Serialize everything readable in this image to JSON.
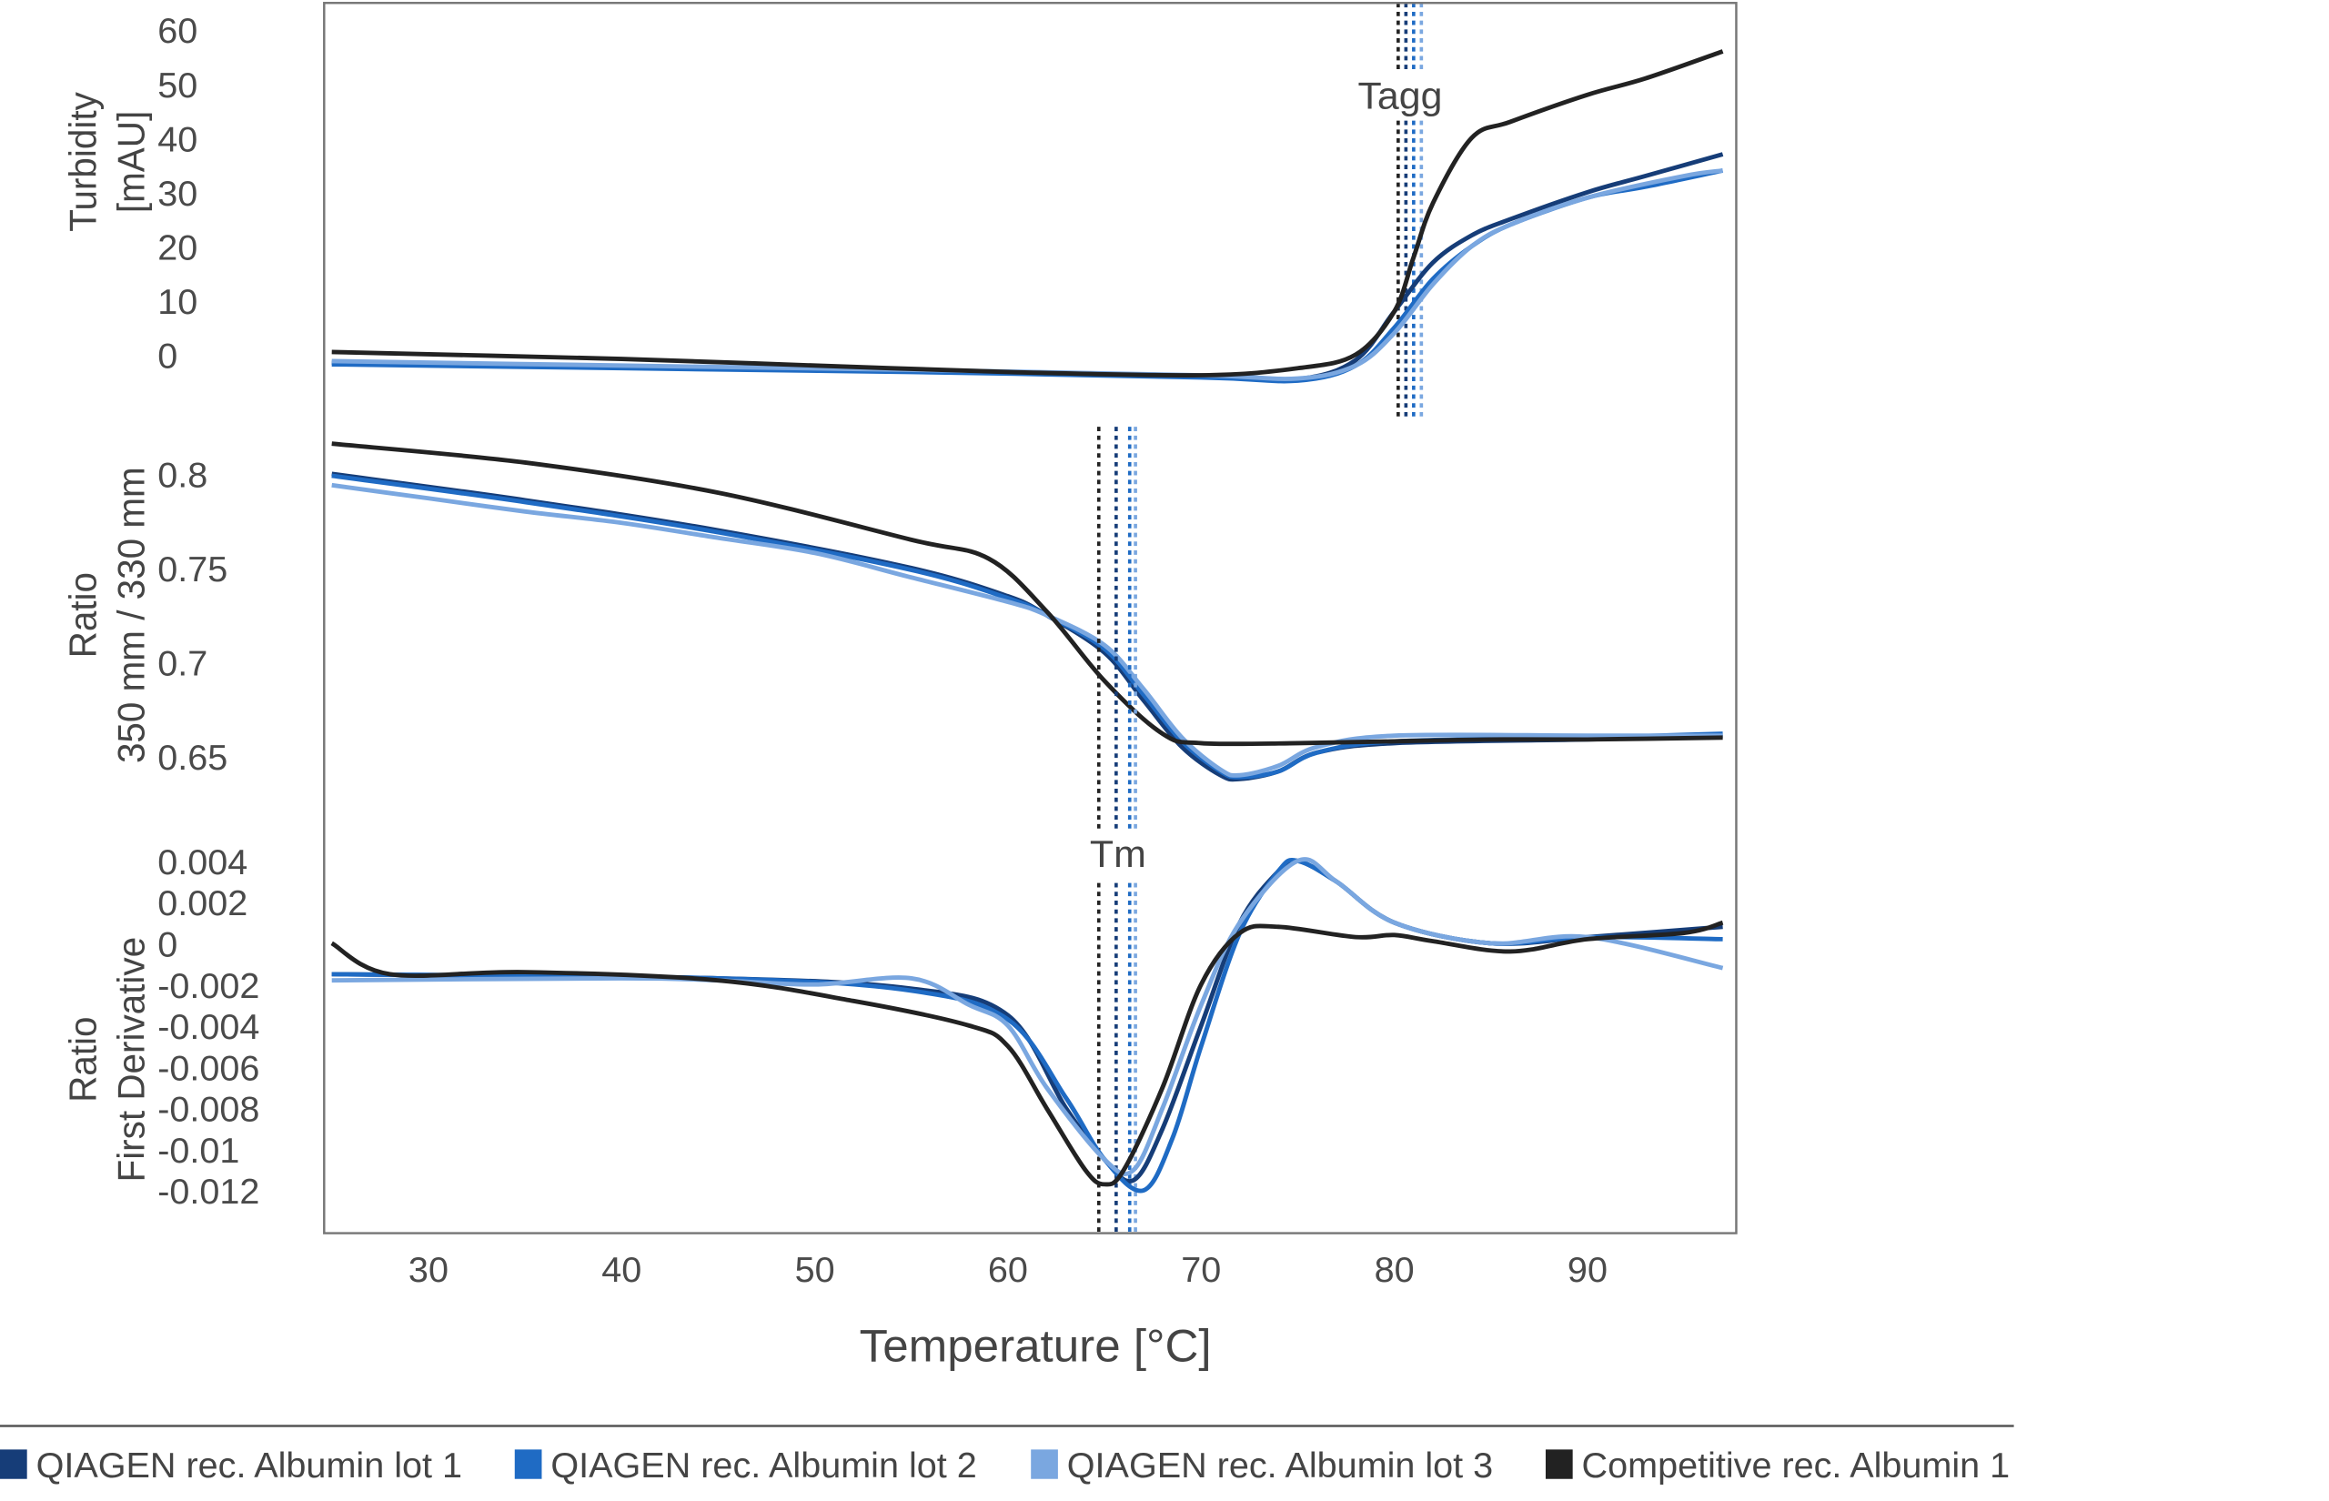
{
  "chart_data": [
    {
      "type": "line",
      "panel": "turbidity",
      "ylabel_lines": [
        "Turbidity",
        "[mAU]"
      ],
      "yticks": [
        "60",
        "50",
        "40",
        "30",
        "20",
        "10",
        "0"
      ],
      "ylim": [
        -6,
        60
      ],
      "annotation": "Tagg",
      "markers": [
        80.2,
        80.6,
        81.0,
        81.4
      ],
      "series": [
        {
          "name": "QIAGEN rec. Albumin lot 1",
          "x": [
            25,
            40,
            55,
            70,
            75,
            78,
            80,
            82,
            84,
            86,
            90,
            93,
            97
          ],
          "y": [
            -1.5,
            -2.2,
            -3,
            -4,
            -4.5,
            -1,
            8,
            17,
            22,
            25,
            30,
            33,
            37
          ]
        },
        {
          "name": "QIAGEN rec. Albumin lot 2",
          "x": [
            25,
            40,
            55,
            70,
            75,
            78,
            80,
            82,
            84,
            86,
            90,
            93,
            97
          ],
          "y": [
            -1.8,
            -2.5,
            -3.2,
            -4.2,
            -4.8,
            -2,
            5,
            14,
            20,
            24,
            29,
            31,
            34
          ]
        },
        {
          "name": "QIAGEN rec. Albumin lot 3",
          "x": [
            25,
            40,
            55,
            70,
            75,
            78,
            80,
            82,
            84,
            86,
            90,
            95,
            97
          ],
          "y": [
            -1.2,
            -2,
            -2.8,
            -3.8,
            -4.4,
            -2,
            4,
            13,
            20,
            24,
            29,
            33,
            34
          ]
        },
        {
          "name": "Competitive rec. Albumin 1",
          "x": [
            25,
            40,
            50,
            60,
            70,
            75,
            78,
            80,
            81,
            82,
            84,
            86,
            90,
            93,
            97
          ],
          "y": [
            0.5,
            -0.8,
            -2,
            -3.2,
            -3.8,
            -2.5,
            0,
            8,
            18,
            28,
            40,
            43,
            48,
            51,
            56
          ]
        }
      ]
    },
    {
      "type": "line",
      "panel": "ratio",
      "ylabel_lines": [
        "Ratio",
        "350 mm / 330 mm"
      ],
      "yticks": [
        "0.8",
        "0.75",
        "0.7",
        "0.65"
      ],
      "ylim": [
        0.63,
        0.82
      ],
      "markers": [],
      "series": [
        {
          "name": "QIAGEN rec. Albumin lot 1",
          "x": [
            25,
            35,
            45,
            55,
            60,
            62,
            65,
            67,
            69,
            71,
            72,
            74,
            76,
            80,
            90,
            97
          ],
          "y": [
            0.8,
            0.786,
            0.77,
            0.75,
            0.735,
            0.725,
            0.705,
            0.68,
            0.655,
            0.64,
            0.638,
            0.642,
            0.652,
            0.657,
            0.659,
            0.661
          ]
        },
        {
          "name": "QIAGEN rec. Albumin lot 2",
          "x": [
            25,
            35,
            45,
            55,
            60,
            62,
            65,
            67,
            69,
            71,
            72,
            74,
            76,
            80,
            90,
            97
          ],
          "y": [
            0.799,
            0.785,
            0.769,
            0.749,
            0.734,
            0.725,
            0.707,
            0.683,
            0.658,
            0.642,
            0.639,
            0.642,
            0.652,
            0.658,
            0.66,
            0.662
          ]
        },
        {
          "name": "QIAGEN rec. Albumin lot 3",
          "x": [
            25,
            30,
            35,
            40,
            45,
            50,
            55,
            60,
            62,
            65,
            67,
            69,
            71,
            72,
            74,
            76,
            80,
            90,
            97
          ],
          "y": [
            0.794,
            0.787,
            0.78,
            0.774,
            0.766,
            0.758,
            0.745,
            0.732,
            0.725,
            0.709,
            0.686,
            0.66,
            0.643,
            0.64,
            0.645,
            0.655,
            0.661,
            0.661,
            0.661
          ]
        },
        {
          "name": "Competitive rec. Albumin 1",
          "x": [
            25,
            35,
            45,
            55,
            59,
            62,
            65,
            68,
            70,
            75,
            80,
            85,
            90,
            97
          ],
          "y": [
            0.816,
            0.806,
            0.79,
            0.765,
            0.755,
            0.727,
            0.69,
            0.662,
            0.657,
            0.657,
            0.658,
            0.659,
            0.659,
            0.66
          ]
        }
      ]
    },
    {
      "type": "line",
      "panel": "derivative",
      "ylabel_lines": [
        "Ratio",
        "First Derivative"
      ],
      "yticks": [
        "0.004",
        "0.002",
        "0",
        "-0.002",
        "-0.004",
        "-0.006",
        "-0.008",
        "-0.01",
        "-0.012"
      ],
      "ylim": [
        -0.0135,
        0.0045
      ],
      "annotation": "Tm",
      "markers": [
        64.7,
        65.6,
        66.3,
        66.6
      ],
      "series": [
        {
          "name": "QIAGEN rec. Albumin lot 1",
          "x": [
            25,
            45,
            55,
            60,
            63,
            65,
            66.5,
            68,
            70,
            72,
            74,
            75,
            77,
            80,
            85,
            90,
            97
          ],
          "y": [
            -0.0015,
            -0.0017,
            -0.0022,
            -0.0035,
            -0.008,
            -0.0105,
            -0.0115,
            -0.009,
            -0.004,
            0.001,
            0.0035,
            0.004,
            0.003,
            0.001,
            0,
            0.0003,
            0.0008
          ]
        },
        {
          "name": "QIAGEN rec. Albumin lot 2",
          "x": [
            25,
            45,
            55,
            60,
            63,
            65,
            67,
            68.5,
            70,
            72,
            74,
            75,
            77,
            80,
            85,
            90,
            97
          ],
          "y": [
            -0.0015,
            -0.0017,
            -0.0023,
            -0.0037,
            -0.0075,
            -0.0105,
            -0.012,
            -0.0095,
            -0.005,
            0.0005,
            0.0035,
            0.004,
            0.003,
            0.001,
            0,
            0.0003,
            0.0002
          ]
        },
        {
          "name": "QIAGEN rec. Albumin lot 3",
          "x": [
            25,
            40,
            45,
            50,
            55,
            58,
            60,
            62,
            65,
            66.5,
            68,
            70,
            72,
            75,
            77,
            80,
            85,
            90,
            97
          ],
          "y": [
            -0.0018,
            -0.0017,
            -0.0018,
            -0.002,
            -0.0017,
            -0.003,
            -0.004,
            -0.007,
            -0.0105,
            -0.011,
            -0.008,
            -0.003,
            0.001,
            0.004,
            0.003,
            0.001,
            0,
            0.0003,
            -0.0012
          ]
        },
        {
          "name": "Competitive rec. Albumin 1",
          "x": [
            25,
            28,
            35,
            45,
            52,
            58,
            60,
            62,
            64,
            65,
            66,
            68,
            70,
            72,
            74,
            78,
            80,
            82,
            86,
            90,
            95,
            97
          ],
          "y": [
            0,
            -0.0015,
            -0.0014,
            -0.0018,
            -0.0028,
            -0.004,
            -0.005,
            -0.008,
            -0.011,
            -0.0117,
            -0.011,
            -0.007,
            -0.002,
            0.0005,
            0.0008,
            0.0003,
            0.0004,
            0.0001,
            -0.0004,
            0.0002,
            0.0005,
            0.001
          ]
        }
      ]
    }
  ],
  "x_axis": {
    "title": "Temperature [°C]",
    "ticks": [
      30,
      40,
      50,
      60,
      70,
      80,
      90
    ],
    "tick_labels": [
      "30",
      "40",
      "50",
      "60",
      "70",
      "80",
      "90"
    ],
    "xlim": [
      24.6,
      97.7
    ]
  },
  "legend": [
    {
      "label": "QIAGEN rec. Albumin lot 1",
      "color": "#163d78"
    },
    {
      "label": "QIAGEN rec. Albumin lot 2",
      "color": "#1f6bc4"
    },
    {
      "label": "QIAGEN rec. Albumin lot 3",
      "color": "#7aa7e0"
    },
    {
      "label": "Competitive rec. Albumin 1",
      "color": "#222222"
    }
  ]
}
